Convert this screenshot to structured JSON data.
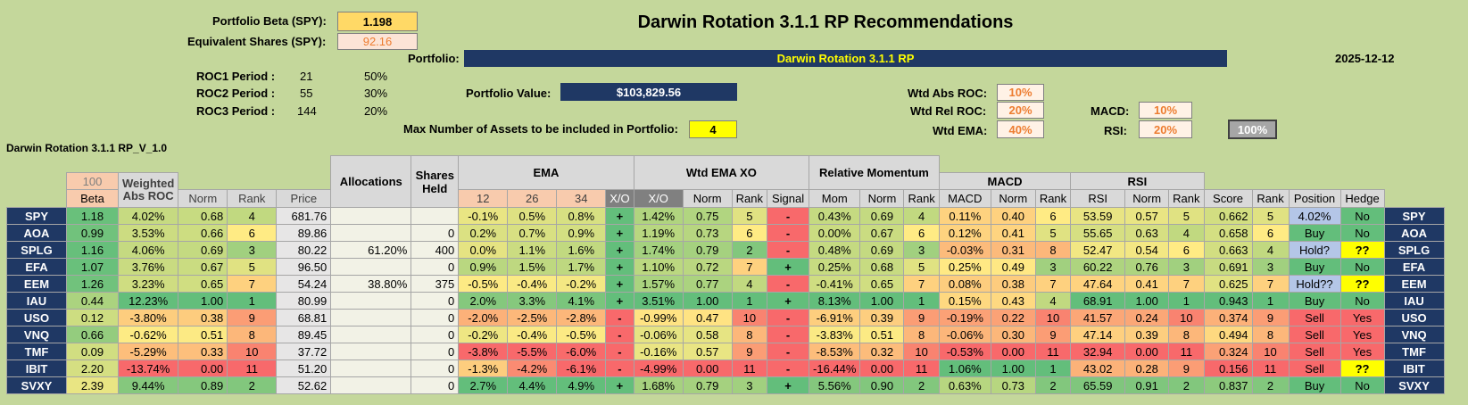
{
  "title": "Darwin Rotation 3.1.1 RP Recommendations",
  "header": {
    "beta_label": "Portfolio Beta (SPY):",
    "beta_value": "1.198",
    "equiv_label": "Equivalent Shares (SPY):",
    "equiv_value": "92.16",
    "portfolio_label": "Portfolio:",
    "portfolio_name": "Darwin Rotation 3.1.1 RP",
    "date": "2025-12-12",
    "roc": [
      {
        "label": "ROC1 Period :",
        "period": "21",
        "weight": "50%"
      },
      {
        "label": "ROC2 Period :",
        "period": "55",
        "weight": "30%"
      },
      {
        "label": "ROC3 Period :",
        "period": "144",
        "weight": "20%"
      }
    ],
    "pv_label": "Portfolio Value:",
    "pv_value": "$103,829.56",
    "max_label": "Max Number of Assets to be included in Portfolio:",
    "max_value": "4",
    "wtd_abs_label": "Wtd Abs ROC:",
    "wtd_abs_value": "10%",
    "wtd_rel_label": "Wtd Rel ROC:",
    "wtd_rel_value": "20%",
    "wtd_ema_label": "Wtd EMA:",
    "wtd_ema_value": "40%",
    "macd_label": "MACD:",
    "macd_value": "10%",
    "rsi_label": "RSI:",
    "rsi_value": "20%",
    "total_value": "100%",
    "sheet_label": "Darwin Rotation 3.1.1 RP_V_1.0"
  },
  "table": {
    "beta_top": "100",
    "groups": {
      "weighted_abs_roc": "Weighted Abs ROC",
      "allocations": "Allocations",
      "shares_held": "Shares Held",
      "ema": "EMA",
      "wtd_ema_xo": "Wtd EMA XO",
      "relative_momentum": "Relative Momentum",
      "macd": "MACD",
      "rsi": "RSI"
    },
    "columns": [
      "Beta",
      "Norm",
      "Rank",
      "Price",
      "12",
      "26",
      "34",
      "X/O",
      "X/O",
      "Norm",
      "Rank",
      "Signal",
      "Mom",
      "Norm",
      "Rank",
      "MACD",
      "Norm",
      "Rank",
      "RSI",
      "Norm",
      "Rank",
      "Score",
      "Rank",
      "Position",
      "Hedge"
    ],
    "rows": [
      {
        "tk": "SPY",
        "beta": "1.18",
        "roc": "4.02%",
        "norm": "0.68",
        "rank": "4",
        "price": "681.76",
        "alloc": "",
        "shares": "",
        "e12": "-0.1%",
        "e26": "0.5%",
        "e34": "0.8%",
        "xo": "+",
        "wxo": "1.42%",
        "wnorm": "0.75",
        "wrank": "5",
        "sig": "-",
        "mom": "0.43%",
        "mnorm": "0.69",
        "mrank": "4",
        "macd": "0.11%",
        "cnorm": "0.40",
        "crank": "6",
        "rsi": "53.59",
        "rnorm": "0.57",
        "rrank": "5",
        "score": "0.662",
        "srank": "5",
        "pos": "4.02%",
        "hedge": "No"
      },
      {
        "tk": "AOA",
        "beta": "0.99",
        "roc": "3.53%",
        "norm": "0.66",
        "rank": "6",
        "price": "89.86",
        "alloc": "",
        "shares": "0",
        "e12": "0.2%",
        "e26": "0.7%",
        "e34": "0.9%",
        "xo": "+",
        "wxo": "1.19%",
        "wnorm": "0.73",
        "wrank": "6",
        "sig": "-",
        "mom": "0.00%",
        "mnorm": "0.67",
        "mrank": "6",
        "macd": "0.12%",
        "cnorm": "0.41",
        "crank": "5",
        "rsi": "55.65",
        "rnorm": "0.63",
        "rrank": "4",
        "score": "0.658",
        "srank": "6",
        "pos": "Buy",
        "hedge": "No"
      },
      {
        "tk": "SPLG",
        "beta": "1.16",
        "roc": "4.06%",
        "norm": "0.69",
        "rank": "3",
        "price": "80.22",
        "alloc": "61.20%",
        "shares": "400",
        "e12": "0.0%",
        "e26": "1.1%",
        "e34": "1.6%",
        "xo": "+",
        "wxo": "1.74%",
        "wnorm": "0.79",
        "wrank": "2",
        "sig": "-",
        "mom": "0.48%",
        "mnorm": "0.69",
        "mrank": "3",
        "macd": "-0.03%",
        "cnorm": "0.31",
        "crank": "8",
        "rsi": "52.47",
        "rnorm": "0.54",
        "rrank": "6",
        "score": "0.663",
        "srank": "4",
        "pos": "Hold?",
        "hedge": "??"
      },
      {
        "tk": "EFA",
        "beta": "1.07",
        "roc": "3.76%",
        "norm": "0.67",
        "rank": "5",
        "price": "96.50",
        "alloc": "",
        "shares": "0",
        "e12": "0.9%",
        "e26": "1.5%",
        "e34": "1.7%",
        "xo": "+",
        "wxo": "1.10%",
        "wnorm": "0.72",
        "wrank": "7",
        "sig": "+",
        "mom": "0.25%",
        "mnorm": "0.68",
        "mrank": "5",
        "macd": "0.25%",
        "cnorm": "0.49",
        "crank": "3",
        "rsi": "60.22",
        "rnorm": "0.76",
        "rrank": "3",
        "score": "0.691",
        "srank": "3",
        "pos": "Buy",
        "hedge": "No"
      },
      {
        "tk": "EEM",
        "beta": "1.26",
        "roc": "3.23%",
        "norm": "0.65",
        "rank": "7",
        "price": "54.24",
        "alloc": "38.80%",
        "shares": "375",
        "e12": "-0.5%",
        "e26": "-0.4%",
        "e34": "-0.2%",
        "xo": "+",
        "wxo": "1.57%",
        "wnorm": "0.77",
        "wrank": "4",
        "sig": "-",
        "mom": "-0.41%",
        "mnorm": "0.65",
        "mrank": "7",
        "macd": "0.08%",
        "cnorm": "0.38",
        "crank": "7",
        "rsi": "47.64",
        "rnorm": "0.41",
        "rrank": "7",
        "score": "0.625",
        "srank": "7",
        "pos": "Hold??",
        "hedge": "??"
      },
      {
        "tk": "IAU",
        "beta": "0.44",
        "roc": "12.23%",
        "norm": "1.00",
        "rank": "1",
        "price": "80.99",
        "alloc": "",
        "shares": "0",
        "e12": "2.0%",
        "e26": "3.3%",
        "e34": "4.1%",
        "xo": "+",
        "wxo": "3.51%",
        "wnorm": "1.00",
        "wrank": "1",
        "sig": "+",
        "mom": "8.13%",
        "mnorm": "1.00",
        "mrank": "1",
        "macd": "0.15%",
        "cnorm": "0.43",
        "crank": "4",
        "rsi": "68.91",
        "rnorm": "1.00",
        "rrank": "1",
        "score": "0.943",
        "srank": "1",
        "pos": "Buy",
        "hedge": "No"
      },
      {
        "tk": "USO",
        "beta": "0.12",
        "roc": "-3.80%",
        "norm": "0.38",
        "rank": "9",
        "price": "68.81",
        "alloc": "",
        "shares": "0",
        "e12": "-2.0%",
        "e26": "-2.5%",
        "e34": "-2.8%",
        "xo": "-",
        "wxo": "-0.99%",
        "wnorm": "0.47",
        "wrank": "10",
        "sig": "-",
        "mom": "-6.91%",
        "mnorm": "0.39",
        "mrank": "9",
        "macd": "-0.19%",
        "cnorm": "0.22",
        "crank": "10",
        "rsi": "41.57",
        "rnorm": "0.24",
        "rrank": "10",
        "score": "0.374",
        "srank": "9",
        "pos": "Sell",
        "hedge": "Yes"
      },
      {
        "tk": "VNQ",
        "beta": "0.66",
        "roc": "-0.62%",
        "norm": "0.51",
        "rank": "8",
        "price": "89.45",
        "alloc": "",
        "shares": "0",
        "e12": "-0.2%",
        "e26": "-0.4%",
        "e34": "-0.5%",
        "xo": "-",
        "wxo": "-0.06%",
        "wnorm": "0.58",
        "wrank": "8",
        "sig": "-",
        "mom": "-3.83%",
        "mnorm": "0.51",
        "mrank": "8",
        "macd": "-0.06%",
        "cnorm": "0.30",
        "crank": "9",
        "rsi": "47.14",
        "rnorm": "0.39",
        "rrank": "8",
        "score": "0.494",
        "srank": "8",
        "pos": "Sell",
        "hedge": "Yes"
      },
      {
        "tk": "TMF",
        "beta": "0.09",
        "roc": "-5.29%",
        "norm": "0.33",
        "rank": "10",
        "price": "37.72",
        "alloc": "",
        "shares": "0",
        "e12": "-3.8%",
        "e26": "-5.5%",
        "e34": "-6.0%",
        "xo": "-",
        "wxo": "-0.16%",
        "wnorm": "0.57",
        "wrank": "9",
        "sig": "-",
        "mom": "-8.53%",
        "mnorm": "0.32",
        "mrank": "10",
        "macd": "-0.53%",
        "cnorm": "0.00",
        "crank": "11",
        "rsi": "32.94",
        "rnorm": "0.00",
        "rrank": "11",
        "score": "0.324",
        "srank": "10",
        "pos": "Sell",
        "hedge": "Yes"
      },
      {
        "tk": "IBIT",
        "beta": "2.20",
        "roc": "-13.74%",
        "norm": "0.00",
        "rank": "11",
        "price": "51.20",
        "alloc": "",
        "shares": "0",
        "e12": "-1.3%",
        "e26": "-4.2%",
        "e34": "-6.1%",
        "xo": "-",
        "wxo": "-4.99%",
        "wnorm": "0.00",
        "wrank": "11",
        "sig": "-",
        "mom": "-16.44%",
        "mnorm": "0.00",
        "mrank": "11",
        "macd": "1.06%",
        "cnorm": "1.00",
        "crank": "1",
        "rsi": "43.02",
        "rnorm": "0.28",
        "rrank": "9",
        "score": "0.156",
        "srank": "11",
        "pos": "Sell",
        "hedge": "??"
      },
      {
        "tk": "SVXY",
        "beta": "2.39",
        "roc": "9.44%",
        "norm": "0.89",
        "rank": "2",
        "price": "52.62",
        "alloc": "",
        "shares": "0",
        "e12": "2.7%",
        "e26": "4.4%",
        "e34": "4.9%",
        "xo": "+",
        "wxo": "1.68%",
        "wnorm": "0.79",
        "wrank": "3",
        "sig": "+",
        "mom": "5.56%",
        "mnorm": "0.90",
        "mrank": "2",
        "macd": "0.63%",
        "cnorm": "0.73",
        "crank": "2",
        "rsi": "65.59",
        "rnorm": "0.91",
        "rrank": "2",
        "score": "0.837",
        "srank": "2",
        "pos": "Buy",
        "hedge": "No"
      }
    ]
  }
}
